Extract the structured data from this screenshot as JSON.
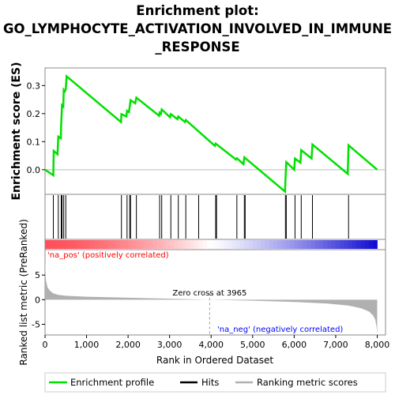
{
  "title_lines": [
    "Enrichment plot:",
    "GO_LYMPHOCYTE_ACTIVATION_INVOLVED_IN_IMMUNE",
    "_RESPONSE"
  ],
  "colors": {
    "enrichment": "#00e000",
    "hits": "#000000",
    "pos_label": "#ff0000",
    "neg_label": "#0000ff",
    "metric_fill": "#b0b0b0",
    "zero_line": "#b0b0b0"
  },
  "chart_data": [
    {
      "type": "line",
      "name": "enrichment-profile",
      "ylabel": "Enrichment score (ES)",
      "xlim": [
        0,
        8200
      ],
      "ylim": [
        -0.085,
        0.36
      ],
      "yticks": [
        0.0,
        0.1,
        0.2,
        0.3
      ],
      "ytick_labels": [
        "0.0",
        "0.1",
        "0.2",
        "0.3"
      ],
      "points": [
        [
          0,
          0.0
        ],
        [
          200,
          -0.02
        ],
        [
          210,
          0.067
        ],
        [
          300,
          0.055
        ],
        [
          320,
          0.118
        ],
        [
          380,
          0.112
        ],
        [
          390,
          0.165
        ],
        [
          410,
          0.23
        ],
        [
          440,
          0.225
        ],
        [
          450,
          0.285
        ],
        [
          480,
          0.28
        ],
        [
          500,
          0.288
        ],
        [
          520,
          0.333
        ],
        [
          1830,
          0.17
        ],
        [
          1840,
          0.198
        ],
        [
          1960,
          0.19
        ],
        [
          1975,
          0.21
        ],
        [
          2020,
          0.205
        ],
        [
          2040,
          0.225
        ],
        [
          2060,
          0.248
        ],
        [
          2170,
          0.237
        ],
        [
          2200,
          0.257
        ],
        [
          2750,
          0.192
        ],
        [
          2760,
          0.203
        ],
        [
          2790,
          0.199
        ],
        [
          2810,
          0.215
        ],
        [
          3010,
          0.187
        ],
        [
          3030,
          0.198
        ],
        [
          3190,
          0.18
        ],
        [
          3210,
          0.19
        ],
        [
          3370,
          0.17
        ],
        [
          3390,
          0.177
        ],
        [
          4090,
          0.085
        ],
        [
          4110,
          0.093
        ],
        [
          4600,
          0.036
        ],
        [
          4620,
          0.041
        ],
        [
          4780,
          0.02
        ],
        [
          4800,
          0.044
        ],
        [
          5780,
          -0.078
        ],
        [
          5790,
          -0.04
        ],
        [
          5810,
          0.027
        ],
        [
          6000,
          0.0
        ],
        [
          6020,
          0.04
        ],
        [
          6150,
          0.025
        ],
        [
          6170,
          0.07
        ],
        [
          6420,
          0.04
        ],
        [
          6440,
          0.09
        ],
        [
          7290,
          -0.015
        ],
        [
          7310,
          0.087
        ],
        [
          8000,
          0.0
        ]
      ]
    },
    {
      "type": "hits",
      "name": "hits",
      "x": [
        200,
        320,
        390,
        410,
        450,
        500,
        1840,
        1975,
        2040,
        2060,
        2200,
        2760,
        2810,
        3030,
        3210,
        3390,
        3700,
        4110,
        4130,
        4620,
        4800,
        4820,
        5790,
        5810,
        6020,
        6170,
        6440,
        7310
      ]
    },
    {
      "type": "area",
      "name": "ranked-list-metric",
      "ylabel": "Ranked list metric (PreRanked)",
      "xlabel": "Rank in Ordered Dataset",
      "xlim": [
        0,
        8200
      ],
      "ylim": [
        -7,
        10
      ],
      "xticks": [
        0,
        1000,
        2000,
        3000,
        4000,
        5000,
        6000,
        7000,
        8000
      ],
      "xtick_labels": [
        "0",
        "1,000",
        "2,000",
        "3,000",
        "4,000",
        "5,000",
        "6,000",
        "7,000",
        "8,000"
      ],
      "yticks": [
        -5,
        0,
        5
      ],
      "ytick_labels": [
        "-5",
        "0",
        "5"
      ],
      "zero_cross": 3965,
      "zero_cross_label": "Zero cross at 3965",
      "pos_label": "'na_pos' (positively correlated)",
      "neg_label": "'na_neg' (negatively correlated)",
      "points": [
        [
          0,
          8.0
        ],
        [
          20,
          4.0
        ],
        [
          60,
          2.5
        ],
        [
          120,
          1.8
        ],
        [
          200,
          1.3
        ],
        [
          300,
          1.0
        ],
        [
          500,
          0.8
        ],
        [
          1000,
          0.6
        ],
        [
          2000,
          0.4
        ],
        [
          3000,
          0.2
        ],
        [
          3965,
          0.0
        ],
        [
          5000,
          -0.2
        ],
        [
          6000,
          -0.45
        ],
        [
          6800,
          -0.8
        ],
        [
          7300,
          -1.2
        ],
        [
          7600,
          -1.7
        ],
        [
          7800,
          -2.4
        ],
        [
          7900,
          -3.2
        ],
        [
          7950,
          -4.0
        ],
        [
          7985,
          -5.5
        ],
        [
          8000,
          -7.0
        ]
      ]
    }
  ],
  "legend": [
    {
      "label": "Enrichment profile",
      "color": "#00e000"
    },
    {
      "label": "Hits",
      "color": "#000000"
    },
    {
      "label": "Ranking metric scores",
      "color": "#b0b0b0"
    }
  ]
}
